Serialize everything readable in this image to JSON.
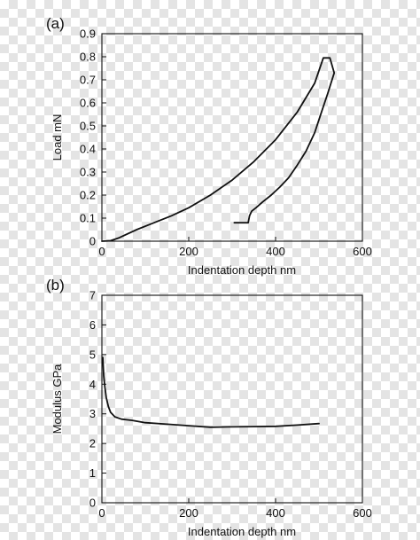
{
  "chart_data": [
    {
      "type": "line",
      "panel_label": "(a)",
      "xlabel": "Indentation depth nm",
      "ylabel": "Load mN",
      "xlim": [
        0,
        600
      ],
      "ylim": [
        0,
        0.9
      ],
      "x_ticks": [
        0,
        200,
        400,
        600
      ],
      "y_ticks": [
        0,
        0.1,
        0.2,
        0.3,
        0.4,
        0.5,
        0.6,
        0.7,
        0.8,
        0.9
      ],
      "x_tick_labels": [
        "0",
        "200",
        "400",
        "600"
      ],
      "y_tick_labels": [
        "0",
        "0.1",
        "0.2",
        "0.3",
        "0.4",
        "0.5",
        "0.6",
        "0.7",
        "0.8",
        "0.9"
      ],
      "grid": false,
      "series": [
        {
          "x": [
            0,
            20,
            40,
            80,
            120,
            160,
            200,
            250,
            300,
            350,
            400,
            450,
            490,
            510,
            525,
            535,
            520,
            505,
            490,
            470,
            450,
            430,
            410,
            390,
            370,
            355,
            345,
            340,
            337,
            330,
            305
          ],
          "y": [
            0,
            0.002,
            0.015,
            0.05,
            0.08,
            0.11,
            0.145,
            0.2,
            0.265,
            0.345,
            0.44,
            0.56,
            0.685,
            0.795,
            0.795,
            0.73,
            0.64,
            0.555,
            0.47,
            0.39,
            0.33,
            0.275,
            0.235,
            0.2,
            0.17,
            0.145,
            0.13,
            0.11,
            0.08,
            0.08,
            0.08
          ]
        }
      ]
    },
    {
      "type": "line",
      "panel_label": "(b)",
      "xlabel": "Indentation depth nm",
      "ylabel": "Modulus GPa",
      "xlim": [
        0,
        600
      ],
      "ylim": [
        0,
        7
      ],
      "x_ticks": [
        0,
        200,
        400,
        600
      ],
      "y_ticks": [
        0,
        1,
        2,
        3,
        4,
        5,
        6,
        7
      ],
      "x_tick_labels": [
        "0",
        "200",
        "400",
        "600"
      ],
      "y_tick_labels": [
        "0",
        "1",
        "2",
        "3",
        "4",
        "5",
        "6",
        "7"
      ],
      "grid": false,
      "series": [
        {
          "x": [
            2,
            4,
            7,
            10,
            15,
            20,
            30,
            45,
            70,
            100,
            150,
            200,
            250,
            300,
            350,
            400,
            450,
            500
          ],
          "y": [
            4.9,
            4.3,
            3.9,
            3.55,
            3.25,
            3.05,
            2.9,
            2.82,
            2.78,
            2.7,
            2.65,
            2.6,
            2.55,
            2.56,
            2.57,
            2.58,
            2.62,
            2.67
          ]
        }
      ]
    }
  ]
}
